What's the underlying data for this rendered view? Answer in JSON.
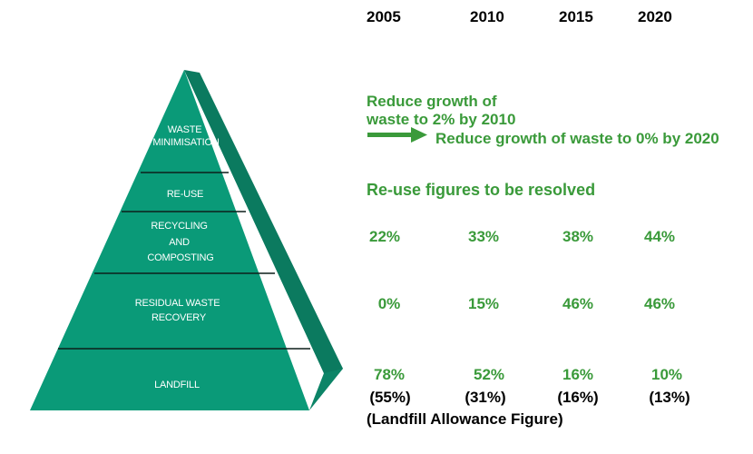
{
  "years": [
    "2005",
    "2010",
    "2015",
    "2020"
  ],
  "pyramid": {
    "layers": [
      {
        "lines": [
          "WASTE",
          "MINIMISATION"
        ]
      },
      {
        "lines": [
          "RE-USE"
        ]
      },
      {
        "lines": [
          "RECYCLING",
          "AND",
          "COMPOSTING"
        ]
      },
      {
        "lines": [
          "RESIDUAL WASTE",
          "RECOVERY"
        ]
      },
      {
        "lines": [
          "LANDFILL"
        ]
      }
    ],
    "colors": {
      "front": "#0a9a78",
      "side": "#0c8467",
      "line": "#0d1f1a",
      "text": "#ffffff"
    }
  },
  "targets": {
    "growth_line1": "Reduce growth of",
    "growth_line2": "waste to 2% by 2010",
    "growth_arrow_text": "Reduce growth of waste to 0% by 2020",
    "reuse_note": "Re-use figures to be resolved",
    "recycling": [
      "22%",
      "33%",
      "38%",
      "44%"
    ],
    "recovery": [
      "0%",
      "15%",
      "46%",
      "46%"
    ],
    "landfill": [
      "78%",
      "52%",
      "16%",
      "10%"
    ],
    "landfill_allowance": [
      "(55%)",
      "(31%)",
      "(16%)",
      "(13%)"
    ],
    "allowance_note": "(Landfill Allowance Figure)"
  },
  "colors": {
    "accent_green": "#3a9a3a",
    "arrow_green": "#3a9a3a"
  }
}
